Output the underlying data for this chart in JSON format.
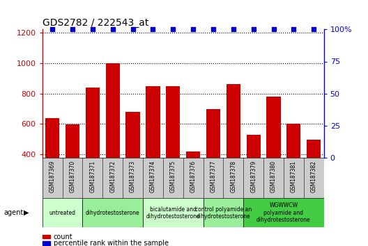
{
  "title": "GDS2782 / 222543_at",
  "samples": [
    "GSM187369",
    "GSM187370",
    "GSM187371",
    "GSM187372",
    "GSM187373",
    "GSM187374",
    "GSM187375",
    "GSM187376",
    "GSM187377",
    "GSM187378",
    "GSM187379",
    "GSM187380",
    "GSM187381",
    "GSM187382"
  ],
  "counts": [
    640,
    598,
    840,
    1000,
    680,
    848,
    848,
    418,
    698,
    860,
    527,
    778,
    602,
    496
  ],
  "percentiles": [
    100,
    100,
    100,
    100,
    100,
    100,
    100,
    100,
    100,
    100,
    100,
    100,
    100,
    100
  ],
  "bar_color": "#cc0000",
  "dot_color": "#0000cc",
  "ylim_left": [
    380,
    1220
  ],
  "ylim_right": [
    0,
    100
  ],
  "yticks_left": [
    400,
    600,
    800,
    1000,
    1200
  ],
  "yticks_right": [
    0,
    25,
    50,
    75,
    100
  ],
  "groups": [
    {
      "label": "untreated",
      "indices": [
        0,
        1
      ],
      "color": "#ccffcc"
    },
    {
      "label": "dihydrotestosterone",
      "indices": [
        2,
        3,
        4
      ],
      "color": "#99ee99"
    },
    {
      "label": "bicalutamide and\ndihydrotestosterone",
      "indices": [
        5,
        6,
        7
      ],
      "color": "#ccffcc"
    },
    {
      "label": "control polyamide an\ndihydrotestosterone",
      "indices": [
        8,
        9
      ],
      "color": "#99ee99"
    },
    {
      "label": "WGWWCW\npolyamide and\ndihydrotestosterone",
      "indices": [
        10,
        11,
        12,
        13
      ],
      "color": "#44cc44"
    }
  ],
  "agent_label": "agent",
  "legend_count_label": "count",
  "legend_percentile_label": "percentile rank within the sample",
  "bar_color_legend": "#cc0000",
  "dot_color_legend": "#0000cc",
  "tick_label_color_left": "#cc0000",
  "tick_label_color_right": "#0000cc",
  "sample_box_color": "#cccccc",
  "title_fontsize": 10,
  "tick_fontsize": 8,
  "sample_fontsize": 5.5,
  "group_fontsize": 5.5,
  "legend_fontsize": 7,
  "agent_fontsize": 7,
  "dot_size": 16
}
